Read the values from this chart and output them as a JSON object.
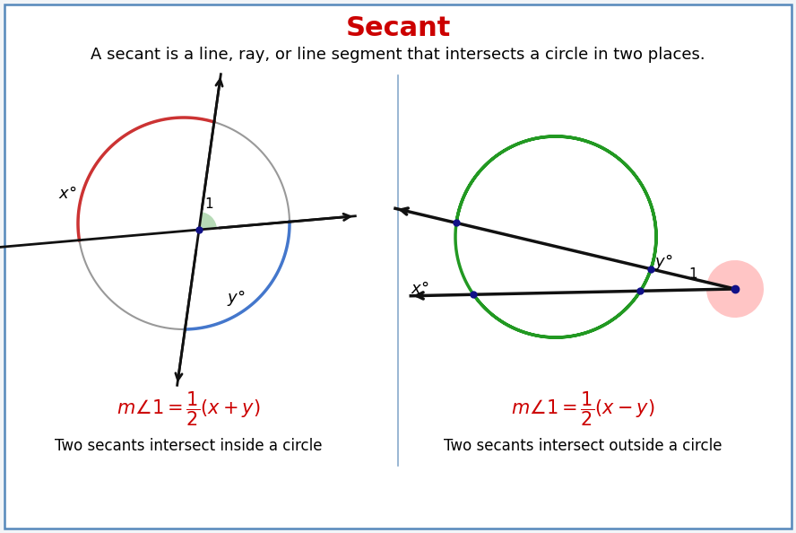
{
  "title": "Secant",
  "title_color": "#cc0000",
  "title_fontsize": 22,
  "subtitle": "A secant is a line, ray, or line segment that intersects a circle in two places.",
  "subtitle_fontsize": 13,
  "bg_color": "#f2f5f8",
  "border_color": "#5588bb",
  "divider_color": "#88aacc",
  "left_label": "Two secants intersect inside a circle",
  "right_label": "Two secants intersect outside a circle",
  "formula_color": "#cc0000",
  "formula_fontsize": 15,
  "label_fontsize": 12,
  "circle_color": "#999999",
  "red_arc_color": "#cc3333",
  "blue_arc_color": "#4477cc",
  "green_arc_color": "#229922",
  "pink_fill_color": "#ffbbbb",
  "green_fill_color": "#99cc99",
  "dot_color": "#111188",
  "arrow_color": "#111111"
}
